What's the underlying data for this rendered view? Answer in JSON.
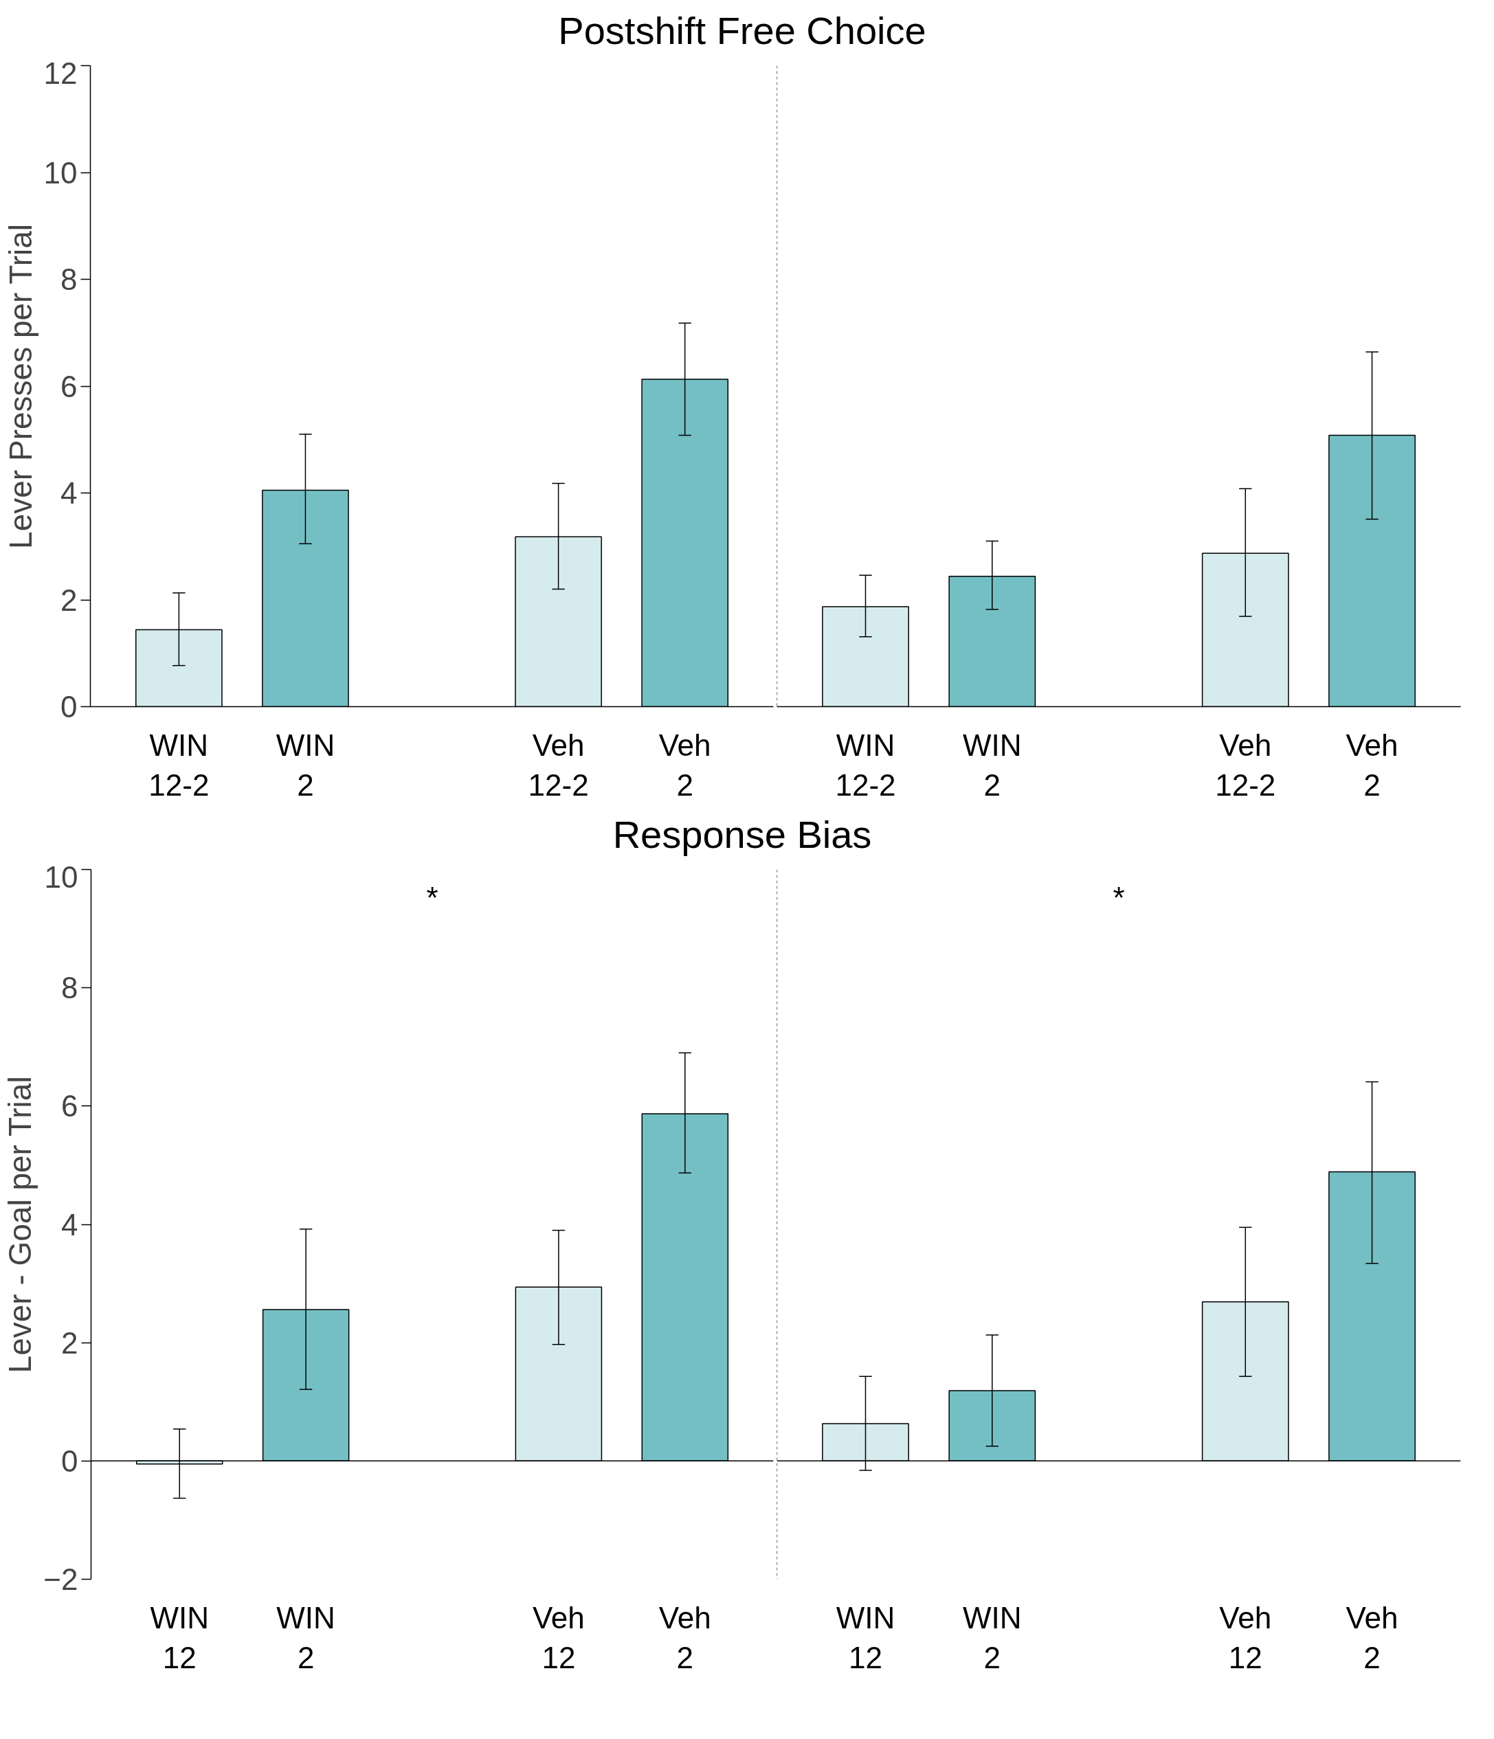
{
  "chart_data": [
    {
      "type": "bar",
      "title": "Postshift Free Choice",
      "ylabel": "Lever Presses per Trial",
      "categories": [
        "WIN\n12-2",
        "WIN\n2",
        "Veh\n12-2",
        "Veh\n2"
      ],
      "values": [
        1.44,
        4.05,
        3.18,
        6.13
      ],
      "colors": [
        "#d6ebee",
        "#74bfc4",
        "#d6ebee",
        "#74bfc4"
      ],
      "errors": [
        [
          0.77,
          2.13
        ],
        [
          3.05,
          5.1
        ],
        [
          2.2,
          4.18
        ],
        [
          5.08,
          7.18
        ]
      ],
      "ylim": [
        0,
        12
      ],
      "yticks": [
        0,
        2,
        4,
        6,
        8,
        10,
        12
      ]
    },
    {
      "type": "bar",
      "categories": [
        "WIN\n12-2",
        "WIN\n2",
        "Veh\n12-2",
        "Veh\n2"
      ],
      "values": [
        1.87,
        2.44,
        2.87,
        5.08
      ],
      "colors": [
        "#d6ebee",
        "#74bfc4",
        "#d6ebee",
        "#74bfc4"
      ],
      "errors": [
        [
          1.31,
          2.46
        ],
        [
          1.82,
          3.1
        ],
        [
          1.69,
          4.08
        ],
        [
          3.51,
          6.64
        ]
      ],
      "ylim": [
        0,
        12
      ],
      "tick_labels": "x"
    },
    {
      "type": "bar",
      "title": "Response Bias",
      "ylabel": "Lever - Goal per Trial",
      "categories": [
        "WIN\n12",
        "WIN\n2",
        "Veh\n12",
        "Veh\n2"
      ],
      "values": [
        -0.05,
        2.56,
        2.94,
        5.87
      ],
      "colors": [
        "#d6ebee",
        "#74bfc4",
        "#d6ebee",
        "#74bfc4"
      ],
      "errors": [
        [
          -0.63,
          0.54
        ],
        [
          1.21,
          3.92
        ],
        [
          1.97,
          3.9
        ],
        [
          4.87,
          6.9
        ]
      ],
      "ylim": [
        -2,
        10
      ],
      "yticks": [
        -2,
        0,
        2,
        4,
        6,
        8,
        10
      ],
      "ref_lines": [
        {
          "axis": "y",
          "value": 0
        }
      ],
      "annotations": [
        "*"
      ]
    },
    {
      "type": "bar",
      "categories": [
        "WIN\n12",
        "WIN\n2",
        "Veh\n12",
        "Veh\n2"
      ],
      "values": [
        0.63,
        1.19,
        2.69,
        4.89
      ],
      "colors": [
        "#d6ebee",
        "#74bfc4",
        "#d6ebee",
        "#74bfc4"
      ],
      "errors": [
        [
          -0.16,
          1.43
        ],
        [
          0.25,
          2.13
        ],
        [
          1.43,
          3.95
        ],
        [
          3.34,
          6.41
        ]
      ],
      "ylim": [
        -2,
        10
      ],
      "tick_labels": "x",
      "ref_lines": [
        {
          "axis": "y",
          "value": 0
        }
      ],
      "annotations": [
        "*"
      ]
    }
  ]
}
